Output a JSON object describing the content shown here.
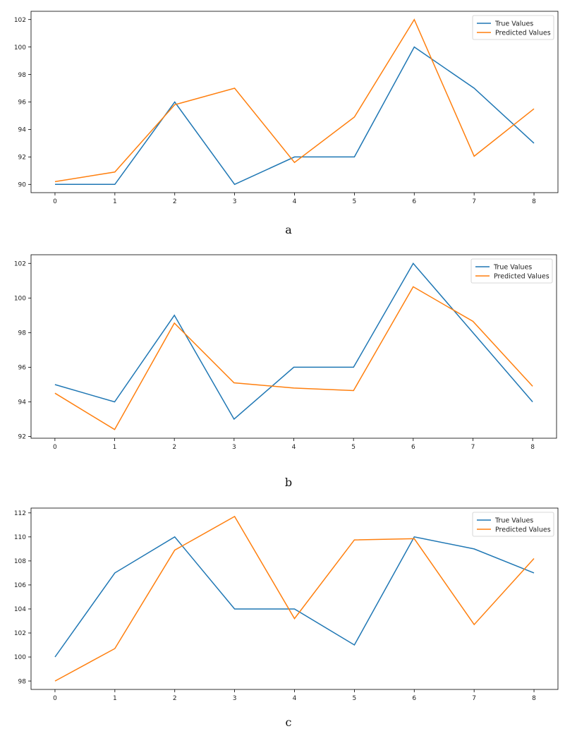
{
  "chart_data": [
    {
      "type": "line",
      "caption": "a",
      "x": [
        0,
        1,
        2,
        3,
        4,
        5,
        6,
        7,
        8
      ],
      "series": [
        {
          "name": "True Values",
          "color": "#1f77b4",
          "values": [
            90,
            90,
            96,
            90,
            92,
            92,
            100,
            97,
            93
          ]
        },
        {
          "name": "Predicted Values",
          "color": "#ff7f0e",
          "values": [
            90.2,
            90.9,
            95.8,
            97.0,
            91.6,
            94.9,
            102.0,
            92.05,
            95.5
          ]
        }
      ],
      "xticks": [
        0,
        1,
        2,
        3,
        4,
        5,
        6,
        7,
        8
      ],
      "yticks": [
        90,
        92,
        94,
        96,
        98,
        100,
        102
      ],
      "xlim": [
        -0.4,
        8.4
      ],
      "ylim": [
        89.4,
        102.6
      ],
      "grid": false,
      "legend": "top-right",
      "title": "",
      "xlabel": "",
      "ylabel": ""
    },
    {
      "type": "line",
      "caption": "b",
      "x": [
        0,
        1,
        2,
        3,
        4,
        5,
        6,
        7,
        8
      ],
      "series": [
        {
          "name": "True Values",
          "color": "#1f77b4",
          "values": [
            95,
            94,
            99,
            93,
            96,
            96,
            102,
            98,
            94
          ]
        },
        {
          "name": "Predicted Values",
          "color": "#ff7f0e",
          "values": [
            94.5,
            92.4,
            98.55,
            95.1,
            94.8,
            94.65,
            100.65,
            98.65,
            94.9
          ]
        }
      ],
      "xticks": [
        0,
        1,
        2,
        3,
        4,
        5,
        6,
        7,
        8
      ],
      "yticks": [
        92,
        94,
        96,
        98,
        100,
        102
      ],
      "xlim": [
        -0.4,
        8.4
      ],
      "ylim": [
        91.9,
        102.5
      ],
      "grid": false,
      "legend": "top-right",
      "title": "",
      "xlabel": "",
      "ylabel": ""
    },
    {
      "type": "line",
      "caption": "c",
      "x": [
        0,
        1,
        2,
        3,
        4,
        5,
        6,
        7,
        8
      ],
      "series": [
        {
          "name": "True Values",
          "color": "#1f77b4",
          "values": [
            100,
            107,
            110,
            104,
            104,
            101,
            110,
            109,
            107
          ]
        },
        {
          "name": "Predicted Values",
          "color": "#ff7f0e",
          "values": [
            98.0,
            100.7,
            108.9,
            111.7,
            103.2,
            109.75,
            109.85,
            102.7,
            108.2
          ]
        }
      ],
      "xticks": [
        0,
        1,
        2,
        3,
        4,
        5,
        6,
        7,
        8
      ],
      "yticks": [
        98,
        100,
        102,
        104,
        106,
        108,
        110,
        112
      ],
      "xlim": [
        -0.4,
        8.4
      ],
      "ylim": [
        97.3,
        112.4
      ],
      "grid": false,
      "legend": "top-right",
      "title": "",
      "xlabel": "",
      "ylabel": ""
    }
  ]
}
